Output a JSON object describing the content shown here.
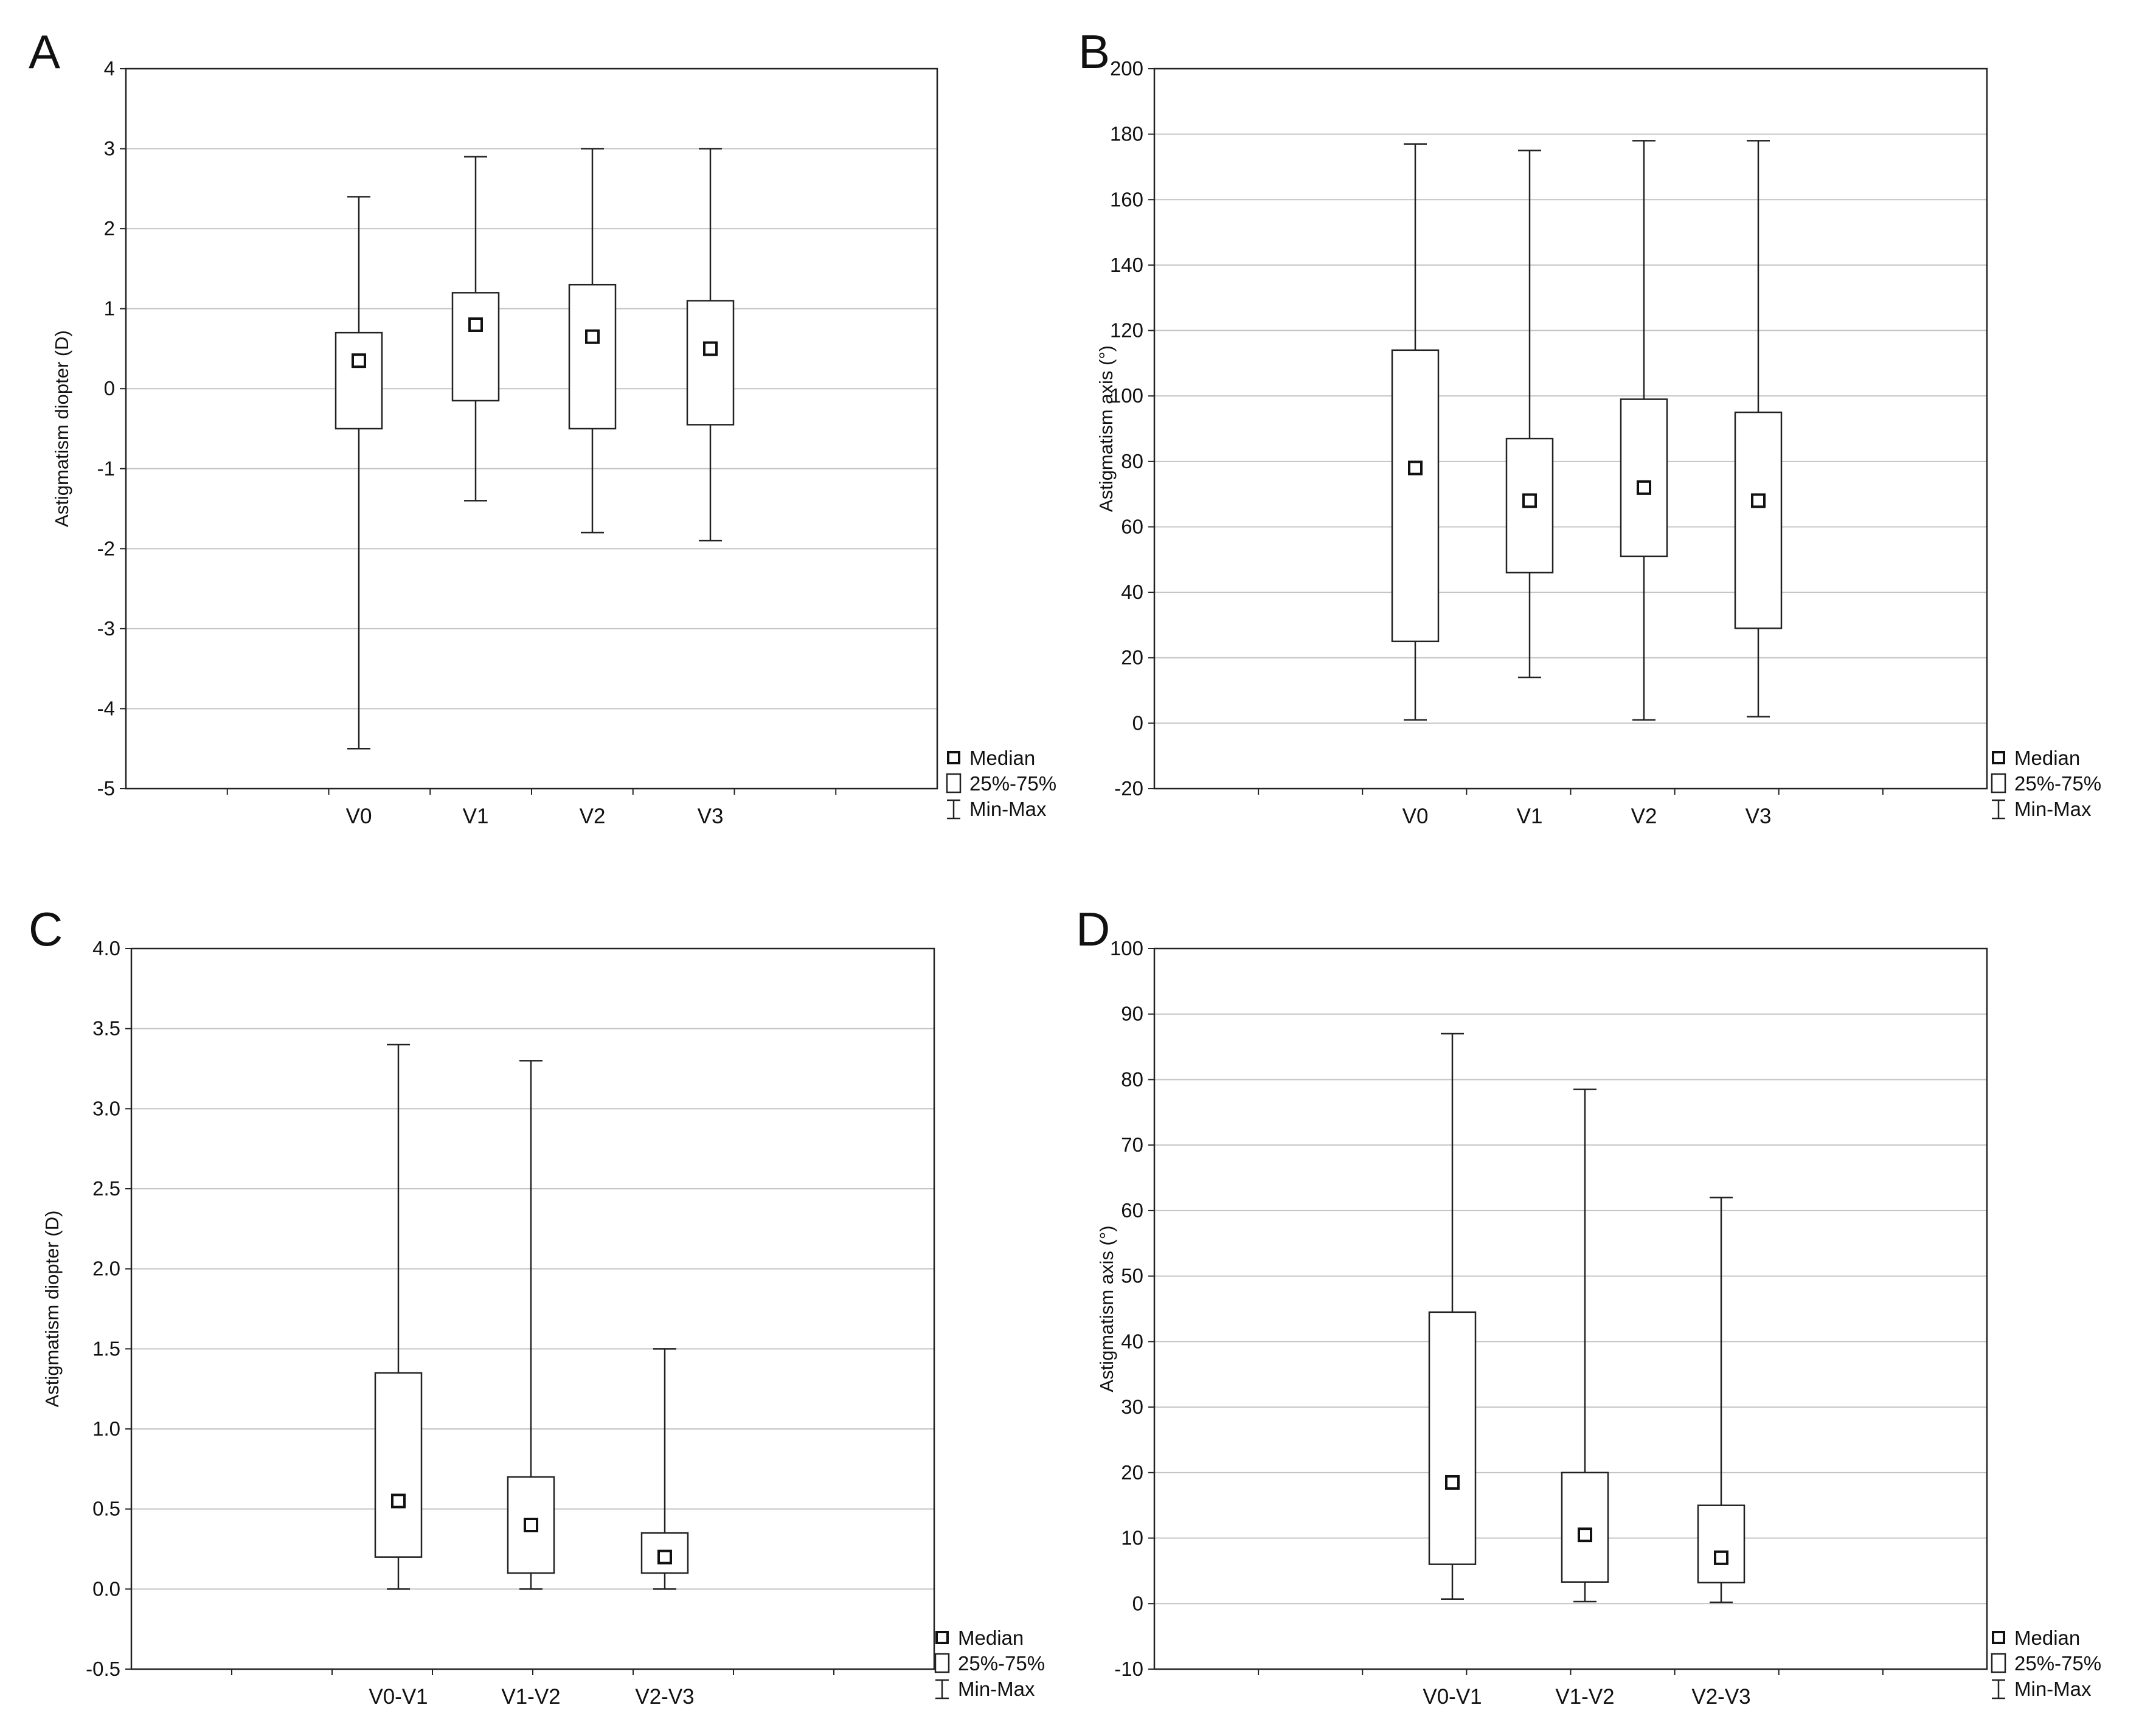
{
  "chart_data": [
    {
      "type": "boxplot",
      "panel": "A",
      "ylabel": "Astigmatism diopter (D)",
      "ylim": [
        -5,
        4
      ],
      "yticks": [
        4,
        3,
        2,
        1,
        0,
        -1,
        -2,
        -3,
        -4,
        -5
      ],
      "ytick_labels": [
        "4",
        "3",
        "2",
        "1",
        "0",
        "-1",
        "-2",
        "-3",
        "-4",
        "-5"
      ],
      "grid": true,
      "categories": [
        "V0",
        "V1",
        "V2",
        "V3"
      ],
      "series": [
        {
          "category": "V0",
          "min": -4.5,
          "q1": -0.5,
          "median": 0.35,
          "q3": 0.7,
          "max": 2.4
        },
        {
          "category": "V1",
          "min": -1.4,
          "q1": -0.15,
          "median": 0.8,
          "q3": 1.2,
          "max": 2.9
        },
        {
          "category": "V2",
          "min": -1.8,
          "q1": -0.5,
          "median": 0.65,
          "q3": 1.3,
          "max": 3.0
        },
        {
          "category": "V3",
          "min": -1.9,
          "q1": -0.45,
          "median": 0.5,
          "q3": 1.1,
          "max": 3.0
        }
      ],
      "legend": {
        "median": "Median",
        "box": "25%-75%",
        "whisker": "Min-Max",
        "placement": "bottom-right outside"
      }
    },
    {
      "type": "boxplot",
      "panel": "B",
      "ylabel": "Astigmatism axis (°)",
      "ylim": [
        -20,
        200
      ],
      "yticks": [
        200,
        180,
        160,
        140,
        120,
        100,
        80,
        60,
        40,
        20,
        0,
        -20
      ],
      "ytick_labels": [
        "200",
        "180",
        "160",
        "140",
        "120",
        "100",
        "80",
        "60",
        "40",
        "20",
        "0",
        "-20"
      ],
      "grid": true,
      "categories": [
        "V0",
        "V1",
        "V2",
        "V3"
      ],
      "series": [
        {
          "category": "V0",
          "min": 1,
          "q1": 25,
          "median": 78,
          "q3": 114,
          "max": 177
        },
        {
          "category": "V1",
          "min": 14,
          "q1": 46,
          "median": 68,
          "q3": 87,
          "max": 175
        },
        {
          "category": "V2",
          "min": 1,
          "q1": 51,
          "median": 72,
          "q3": 99,
          "max": 178
        },
        {
          "category": "V3",
          "min": 2,
          "q1": 29,
          "median": 68,
          "q3": 95,
          "max": 178
        }
      ],
      "legend": {
        "median": "Median",
        "box": "25%-75%",
        "whisker": "Min-Max",
        "placement": "bottom-right outside"
      }
    },
    {
      "type": "boxplot",
      "panel": "C",
      "ylabel": "Astigmatism diopter (D)",
      "ylim": [
        -0.5,
        4.0
      ],
      "yticks": [
        4.0,
        3.5,
        3.0,
        2.5,
        2.0,
        1.5,
        1.0,
        0.5,
        0.0,
        -0.5
      ],
      "ytick_labels": [
        "4.0",
        "3.5",
        "3.0",
        "2.5",
        "2.0",
        "1.5",
        "1.0",
        "0.5",
        "0.0",
        "-0.5"
      ],
      "grid": true,
      "categories": [
        "V0-V1",
        "V1-V2",
        "V2-V3"
      ],
      "series": [
        {
          "category": "V0-V1",
          "min": 0.0,
          "q1": 0.2,
          "median": 0.55,
          "q3": 1.35,
          "max": 3.4
        },
        {
          "category": "V1-V2",
          "min": 0.0,
          "q1": 0.1,
          "median": 0.4,
          "q3": 0.7,
          "max": 3.3
        },
        {
          "category": "V2-V3",
          "min": 0.0,
          "q1": 0.1,
          "median": 0.2,
          "q3": 0.35,
          "max": 1.5
        }
      ],
      "legend": {
        "median": "Median",
        "box": "25%-75%",
        "whisker": "Min-Max",
        "placement": "bottom-right outside"
      }
    },
    {
      "type": "boxplot",
      "panel": "D",
      "ylabel": "Astigmatism axis (°)",
      "ylim": [
        -10,
        100
      ],
      "yticks": [
        100,
        90,
        80,
        70,
        60,
        50,
        40,
        30,
        20,
        10,
        0,
        -10
      ],
      "ytick_labels": [
        "100",
        "90",
        "80",
        "70",
        "60",
        "50",
        "40",
        "30",
        "20",
        "10",
        "0",
        "-10"
      ],
      "grid": true,
      "categories": [
        "V0-V1",
        "V1-V2",
        "V2-V3"
      ],
      "series": [
        {
          "category": "V0-V1",
          "min": 0.7,
          "q1": 6,
          "median": 18.5,
          "q3": 44.5,
          "max": 87
        },
        {
          "category": "V1-V2",
          "min": 0.3,
          "q1": 3.3,
          "median": 10.5,
          "q3": 20,
          "max": 78.5
        },
        {
          "category": "V2-V3",
          "min": 0.2,
          "q1": 3.2,
          "median": 7,
          "q3": 15,
          "max": 62
        }
      ],
      "legend": {
        "median": "Median",
        "box": "25%-75%",
        "whisker": "Min-Max",
        "placement": "bottom-right outside"
      }
    }
  ]
}
